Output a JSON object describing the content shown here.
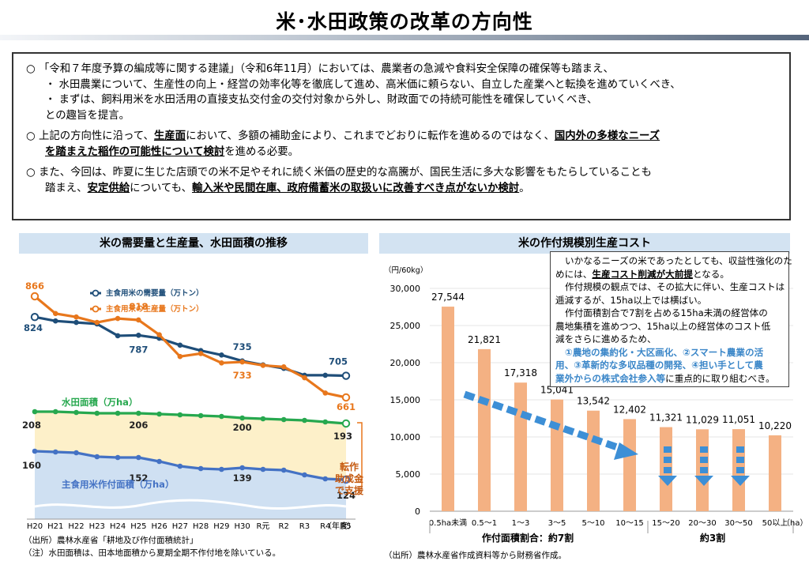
{
  "title": "米･水田政策の改革の方向性",
  "box": {
    "p1": {
      "l1": "○ 「令和７年度予算の編成等に関する建議」（令和6年11月）においては、農業者の急減や食料安全保障の確保等も踏まえ、",
      "l2": "・ 水田農業について、生産性の向上・経営の効率化等を徹底して進め、高米価に頼らない、自立した産業へと転換を進めていくべき、",
      "l3": "・ まずは、飼料用米を水田活用の直接支払交付金の交付対象から外し、財政面での持続可能性を確保していくべき、",
      "l4": "との趣旨を提言。"
    },
    "p2": {
      "a": "○ 上記の方向性に沿って、",
      "b": "生産面",
      "c": "において、多額の補助金により、これまでどおりに転作を進めるのではなく、",
      "d": "国内外の多様なニーズ",
      "e": "を踏まえた稲作の可能性について検討",
      "f": "を進める必要。"
    },
    "p3": {
      "a": "○ また、今回は、昨夏に生じた店頭での米不足やそれに続く米価の歴史的な高騰が、国民生活に多大な影響をもたらしていることも",
      "b": "踏まえ、",
      "c": "安定供給",
      "d": "についても、",
      "e": "輸入米や民間在庫、政府備蓄米の取扱いに改善すべき点がないか検討",
      "f": "。"
    }
  },
  "left": {
    "header": "米の需要量と生産量、水田面積の推移",
    "legend_demand": "主食用米の需要量（万トン）",
    "legend_production": "主食用米の生産量（万トン）",
    "paddy_label": "水田面積（万ha）",
    "rice_area_label": "主食用米作付面積（万ha）",
    "side_label": [
      "転作",
      "助成金",
      "で支援"
    ],
    "year_unit": "（年度）",
    "source1": "（出所）農林水産省「耕地及び作付面積統計」",
    "source2": "（注）水田面積は、田本地面積から夏期全期不作付地を除いている。"
  },
  "right": {
    "header": "米の作付規模別生産コスト",
    "yunit": "（円/60kg）",
    "xunit": "（ha）",
    "group1": "作付面積割合：約7割",
    "group2": "約3割",
    "source": "（出所）農林水産省作成資料等から財務省作成。",
    "callout": {
      "l1": "いかなるニーズの米であったとしても、収益性強化のた",
      "l2a": "めには、",
      "l2b": "生産コスト削減が大前提",
      "l2c": "となる。",
      "l3": "作付規模の観点では、その拡大に伴い、生産コストは",
      "l4": "逓減するが、15ha以上では横ばい。",
      "l5": "作付面積割合で7割を占める15ha未満の経営体の",
      "l6": "農地集積を進めつつ、15ha以上の経営体のコスト低",
      "l7": "減をさらに進めるため、",
      "l8": "①農地の集約化・大区画化、②スマート農業の活",
      "l9": "用、③革新的な多収品種の開発、④担い手として農",
      "l10a": "業外からの株式会社参入等",
      "l10b": "に重点的に取り組むべき。"
    }
  },
  "chart_data": [
    {
      "type": "line",
      "title": "米の需要量と生産量、水田面積の推移",
      "x": [
        "H20",
        "H21",
        "H22",
        "H23",
        "H24",
        "H25",
        "H26",
        "H27",
        "H28",
        "H29",
        "H30",
        "R元",
        "R2",
        "R3",
        "R4",
        "R5"
      ],
      "series": [
        {
          "name": "主食用米の需要量（万トン）",
          "color": "#1f4e79",
          "values": [
            824,
            816,
            813,
            810,
            786,
            787,
            781,
            767,
            756,
            747,
            735,
            727,
            720,
            706,
            706,
            705
          ]
        },
        {
          "name": "主食用米の生産量（万トン）",
          "color": "#e8771c",
          "values": [
            866,
            831,
            824,
            813,
            821,
            818,
            788,
            744,
            750,
            731,
            733,
            726,
            723,
            701,
            670,
            661
          ]
        },
        {
          "name": "水田面積（万ha）",
          "color": "#27a84f",
          "values": [
            208,
            208,
            207,
            206,
            206,
            206,
            205,
            204,
            203,
            202,
            200,
            199,
            198,
            197,
            195,
            193
          ]
        },
        {
          "name": "主食用米作付面積（万ha）",
          "color": "#4472c4",
          "values": [
            160,
            159,
            158,
            153,
            152,
            152,
            147,
            141,
            138,
            137,
            139,
            137,
            136,
            130,
            125,
            124
          ]
        }
      ],
      "data_labels": [
        {
          "series": 0,
          "index": 0,
          "text": "824"
        },
        {
          "series": 0,
          "index": 5,
          "text": "787"
        },
        {
          "series": 0,
          "index": 10,
          "text": "735"
        },
        {
          "series": 0,
          "index": 15,
          "text": "705"
        },
        {
          "series": 1,
          "index": 0,
          "text": "866"
        },
        {
          "series": 1,
          "index": 5,
          "text": "818"
        },
        {
          "series": 1,
          "index": 10,
          "text": "733"
        },
        {
          "series": 1,
          "index": 15,
          "text": "661"
        },
        {
          "series": 2,
          "index": 0,
          "text": "208"
        },
        {
          "series": 2,
          "index": 5,
          "text": "206"
        },
        {
          "series": 2,
          "index": 10,
          "text": "200"
        },
        {
          "series": 2,
          "index": 15,
          "text": "193"
        },
        {
          "series": 3,
          "index": 0,
          "text": "160"
        },
        {
          "series": 3,
          "index": 5,
          "text": "152"
        },
        {
          "series": 3,
          "index": 10,
          "text": "139"
        },
        {
          "series": 3,
          "index": 15,
          "text": "124"
        }
      ]
    },
    {
      "type": "bar",
      "title": "米の作付規模別生産コスト",
      "ylabel": "（円/60kg）",
      "xlabel": "（ha）",
      "ylim": [
        0,
        30000
      ],
      "yticks": [
        "0",
        "5,000",
        "10,000",
        "15,000",
        "20,000",
        "25,000",
        "30,000"
      ],
      "categories": [
        "0.5ha未満",
        "0.5～1",
        "1～3",
        "3～5",
        "5～10",
        "10～15",
        "15～20",
        "20～30",
        "30～50",
        "50以上"
      ],
      "values": [
        27544,
        21821,
        17318,
        15041,
        13542,
        12402,
        11321,
        11029,
        11051,
        10220
      ],
      "labels": [
        "27,544",
        "21,821",
        "17,318",
        "15,041",
        "13,542",
        "12,402",
        "11,321",
        "11,029",
        "11,051",
        "10,220"
      ],
      "color": "#f4b183"
    }
  ]
}
